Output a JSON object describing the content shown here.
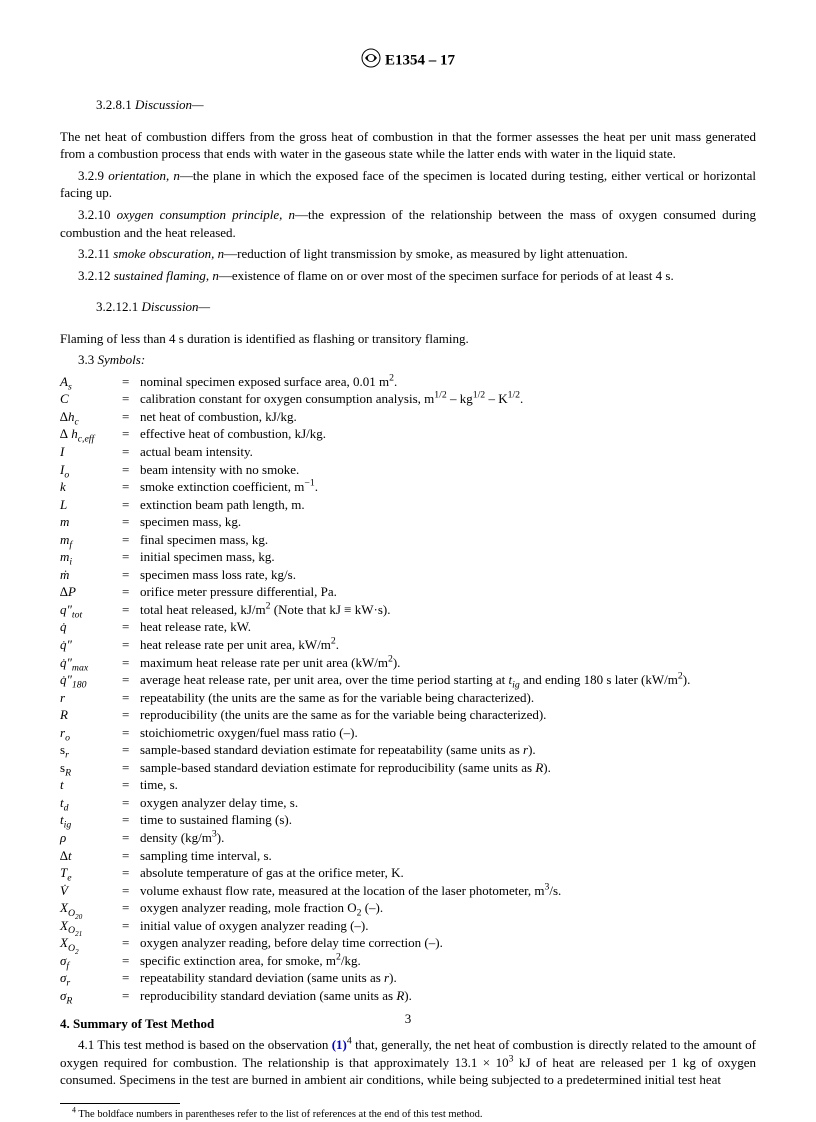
{
  "header": {
    "designation": "E1354 – 17"
  },
  "sec_3_2_8_1": {
    "num": "3.2.8.1",
    "label": "Discussion—"
  },
  "p1": "The net heat of combustion differs from the gross heat of combustion in that the former assesses the heat per unit mass generated from a combustion process that ends with water in the gaseous state while the latter ends with water in the liquid state.",
  "s3_2_9": {
    "num": "3.2.9",
    "term": "orientation, n",
    "def": "—the plane in which the exposed face of the specimen is located during testing, either vertical or horizontal facing up."
  },
  "s3_2_10": {
    "num": "3.2.10",
    "term": "oxygen consumption principle, n",
    "def": "—the expression of the relationship between the mass of oxygen consumed during combustion and the heat released."
  },
  "s3_2_11": {
    "num": "3.2.11",
    "term": "smoke obscuration, n",
    "def": "—reduction of light transmission by smoke, as measured by light attenuation."
  },
  "s3_2_12": {
    "num": "3.2.12",
    "term": "sustained flaming, n",
    "def": "—existence of flame on or over most of the specimen surface for periods of at least 4 s."
  },
  "sec_3_2_12_1": {
    "num": "3.2.12.1",
    "label": "Discussion—"
  },
  "p2": "Flaming of less than 4 s duration is identified as flashing or transitory flaming.",
  "s3_3": {
    "num": "3.3",
    "label": "Symbols:"
  },
  "symbols": [
    {
      "s": "A<sub>s</sub>",
      "d": "nominal specimen exposed surface area, 0.01 m<sup>2</sup>."
    },
    {
      "s": "C",
      "d": "calibration constant for oxygen consumption analysis, m<sup>1/2</sup> – kg<sup>1/2</sup> – K<sup>1/2</sup>."
    },
    {
      "s": "∆h<sub>c</sub>",
      "d": "net heat of combustion, kJ/kg."
    },
    {
      "s": "∆ h<sub>c,eff</sub>",
      "d": "effective heat of combustion, kJ/kg."
    },
    {
      "s": "I",
      "d": "actual beam intensity."
    },
    {
      "s": "I<sub>o</sub>",
      "d": "beam intensity with no smoke."
    },
    {
      "s": "k",
      "d": "smoke extinction coefficient, m<sup>−1</sup>."
    },
    {
      "s": "L",
      "d": "extinction beam path length, m."
    },
    {
      "s": "m",
      "d": "specimen mass, kg."
    },
    {
      "s": "m<sub>f</sub>",
      "d": "final specimen mass, kg."
    },
    {
      "s": "m<sub>i</sub>",
      "d": "initial specimen mass, kg."
    },
    {
      "s": "ṁ",
      "d": "specimen mass loss rate, kg/s."
    },
    {
      "s": "∆P",
      "d": "orifice meter pressure differential, Pa."
    },
    {
      "s": "q″<sub>tot</sub>",
      "d": "total heat released, kJ/m<sup>2</sup> (Note that kJ ≡ kW·s)."
    },
    {
      "s": "q̇",
      "d": "heat release rate, kW."
    },
    {
      "s": "q̇″",
      "d": "heat release rate per unit area, kW/m<sup>2</sup>."
    },
    {
      "s": "q̇″<sub>max</sub>",
      "d": "maximum heat release rate per unit area (kW/m<sup>2</sup>)."
    },
    {
      "s": "q̇″<sub>180</sub>",
      "d": "average heat release rate, per unit area, over the time period starting at <i>t<sub>ig</sub></i> and ending 180 s later (kW/m<sup>2</sup>)."
    },
    {
      "s": "r",
      "d": "repeatability (the units are the same as for the variable being characterized)."
    },
    {
      "s": "R",
      "d": "reproducibility (the units are the same as for the variable being characterized)."
    },
    {
      "s": "r<sub>o</sub>",
      "d": "stoichiometric oxygen/fuel mass ratio (–)."
    },
    {
      "s": "<span style='font-style:normal'>s</span><sub>r</sub>",
      "d": "sample-based standard deviation estimate for repeatability (same units as <i>r</i>)."
    },
    {
      "s": "<span style='font-style:normal'>s</span><sub>R</sub>",
      "d": "sample-based standard deviation estimate for reproducibility (same units as <i>R</i>)."
    },
    {
      "s": "t",
      "d": "time, s."
    },
    {
      "s": "t<sub>d</sub>",
      "d": "oxygen analyzer delay time, s."
    },
    {
      "s": "t<sub>ig</sub>",
      "d": "time to sustained flaming (s)."
    },
    {
      "s": "ρ",
      "d": "density (kg/m<sup>3</sup>)."
    },
    {
      "s": "∆t",
      "d": "sampling time interval, s."
    },
    {
      "s": "T<sub>e</sub>",
      "d": "absolute temperature of gas at the orifice meter, K."
    },
    {
      "s": "V̇",
      "d": "volume exhaust flow rate, measured at the location of the laser photometer, m<sup>3</sup>/s."
    },
    {
      "s": "X<sub>O<sub>2</sub><sub>0</sub></sub>",
      "d": "oxygen analyzer reading, mole fraction O<sub>2</sub> (–)."
    },
    {
      "s": "X<sub>O<sub>2</sub><sub>1</sub></sub>",
      "d": "initial value of oxygen analyzer reading (–)."
    },
    {
      "s": "X<sub>O<sub>2</sub></sub>",
      "d": "oxygen analyzer reading, before delay time correction (–)."
    },
    {
      "s": "σ<sub>f</sub>",
      "d": "specific extinction area, for smoke, m<sup>2</sup>/kg."
    },
    {
      "s": "σ<sub>r</sub>",
      "d": "repeatability standard deviation (same units as <i>r</i>)."
    },
    {
      "s": "σ<sub>R</sub>",
      "d": "reproducibility standard deviation (same units as <i>R</i>)."
    }
  ],
  "sec4": {
    "title": "4. Summary of Test Method"
  },
  "p4_1_pre": "4.1 This test method is based on the observation ",
  "p4_1_ref": "(1)",
  "p4_1_sup": "4",
  "p4_1_post": " that, generally, the net heat of combustion is directly related to the amount of oxygen required for combustion. The relationship is that approximately 13.1 × 10",
  "p4_1_exp": "3",
  "p4_1_tail": " kJ of heat are released per 1 kg of oxygen consumed. Specimens in the test are burned in ambient air conditions, while being subjected to a predetermined initial test heat",
  "footnote": "The boldface numbers in parentheses refer to the list of references at the end of this test method.",
  "footnote_num": "4",
  "page": "3"
}
